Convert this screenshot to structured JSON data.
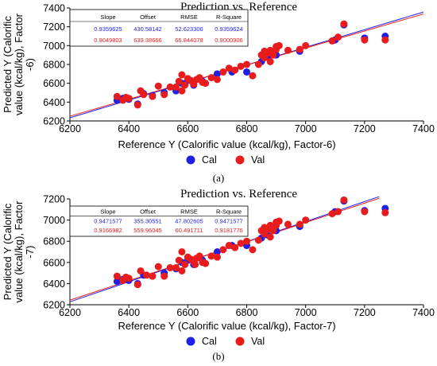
{
  "colors": {
    "cal": "#1f1fe6",
    "val": "#e81c1c",
    "axis": "#000000"
  },
  "chart_data": [
    {
      "type": "scatter",
      "panel_label": "(a)",
      "title": "Prediction vs. Reference",
      "xlabel": "Reference Y (Calorific value (kcal/kg), Factor-6)",
      "ylabel": [
        "Predicted Y (Calorific",
        "value (kcal/kg), Factor",
        "-6)"
      ],
      "xlim": [
        6200,
        7400
      ],
      "ylim": [
        6200,
        7400
      ],
      "xticks": [
        6200,
        6400,
        6600,
        6800,
        7000,
        7200,
        7400
      ],
      "yticks": [
        6200,
        6400,
        6600,
        6800,
        7000,
        7200,
        7400
      ],
      "stats_headers": [
        "Slope",
        "Offset",
        "RMSE",
        "R-Square"
      ],
      "stats_rows": [
        {
          "series": "Cal",
          "values": [
            "0.9359625",
            "430.58142",
            "52.623306",
            "0.9359624"
          ]
        },
        {
          "series": "Val",
          "values": [
            "0.9049803",
            "639.38666",
            "66.844078",
            "0.9000906"
          ]
        }
      ],
      "legend": [
        "Cal",
        "Val"
      ],
      "fit_lines": [
        {
          "series": "Cal",
          "x0": 6200,
          "x1": 7400,
          "slope": 0.9359625,
          "offset": 430.58142
        },
        {
          "series": "Val",
          "x0": 6200,
          "x1": 7400,
          "slope": 0.9049803,
          "offset": 639.38666
        }
      ],
      "series": [
        {
          "name": "Cal",
          "points": [
            [
              6360,
              6420
            ],
            [
              6380,
              6440
            ],
            [
              6400,
              6430
            ],
            [
              6430,
              6380
            ],
            [
              6450,
              6490
            ],
            [
              6480,
              6470
            ],
            [
              6520,
              6500
            ],
            [
              6560,
              6520
            ],
            [
              6580,
              6600
            ],
            [
              6600,
              6630
            ],
            [
              6620,
              6580
            ],
            [
              6650,
              6620
            ],
            [
              6700,
              6700
            ],
            [
              6750,
              6720
            ],
            [
              6800,
              6720
            ],
            [
              6850,
              6830
            ],
            [
              6870,
              6880
            ],
            [
              6900,
              6900
            ],
            [
              6980,
              6940
            ],
            [
              7100,
              7060
            ],
            [
              7130,
              7220
            ],
            [
              7200,
              7080
            ],
            [
              7270,
              7100
            ]
          ]
        },
        {
          "name": "Val",
          "points": [
            [
              6360,
              6460
            ],
            [
              6380,
              6420
            ],
            [
              6390,
              6450
            ],
            [
              6400,
              6440
            ],
            [
              6430,
              6370
            ],
            [
              6440,
              6520
            ],
            [
              6450,
              6480
            ],
            [
              6480,
              6460
            ],
            [
              6500,
              6570
            ],
            [
              6520,
              6480
            ],
            [
              6540,
              6560
            ],
            [
              6560,
              6560
            ],
            [
              6570,
              6620
            ],
            [
              6580,
              6690
            ],
            [
              6580,
              6520
            ],
            [
              6590,
              6580
            ],
            [
              6600,
              6650
            ],
            [
              6610,
              6630
            ],
            [
              6620,
              6610
            ],
            [
              6620,
              6590
            ],
            [
              6630,
              6640
            ],
            [
              6640,
              6660
            ],
            [
              6650,
              6610
            ],
            [
              6660,
              6600
            ],
            [
              6680,
              6660
            ],
            [
              6700,
              6640
            ],
            [
              6720,
              6720
            ],
            [
              6740,
              6760
            ],
            [
              6760,
              6740
            ],
            [
              6780,
              6780
            ],
            [
              6800,
              6800
            ],
            [
              6820,
              6680
            ],
            [
              6840,
              6800
            ],
            [
              6850,
              6900
            ],
            [
              6860,
              6870
            ],
            [
              6860,
              6940
            ],
            [
              6870,
              6920
            ],
            [
              6880,
              6830
            ],
            [
              6880,
              6950
            ],
            [
              6890,
              6900
            ],
            [
              6900,
              6960
            ],
            [
              6900,
              6990
            ],
            [
              6910,
              7000
            ],
            [
              6940,
              6950
            ],
            [
              6980,
              6960
            ],
            [
              7000,
              7000
            ],
            [
              7090,
              7050
            ],
            [
              7110,
              7090
            ],
            [
              7130,
              7230
            ],
            [
              7200,
              7060
            ],
            [
              7270,
              7060
            ]
          ]
        }
      ]
    },
    {
      "type": "scatter",
      "panel_label": "(b)",
      "title": "Prediction vs. Reference",
      "xlabel": "Reference Y (Calorific value (kcal/kg), Factor-7)",
      "ylabel": [
        "Predicted Y (Calorific",
        "value (kcal/kg), Factor",
        "-7)"
      ],
      "xlim": [
        6200,
        7400
      ],
      "ylim": [
        6200,
        7200
      ],
      "xticks": [
        6200,
        6400,
        6600,
        6800,
        7000,
        7200,
        7400
      ],
      "yticks": [
        6200,
        6400,
        6600,
        6800,
        7000,
        7200
      ],
      "stats_headers": [
        "Slope",
        "Offset",
        "RMSE",
        "R-Square"
      ],
      "stats_rows": [
        {
          "series": "Cal",
          "values": [
            "0.9471577",
            "355.30551",
            "47.802605",
            "0.9471577"
          ]
        },
        {
          "series": "Val",
          "values": [
            "0.9166982",
            "559.96045",
            "60.491711",
            "0.9181776"
          ]
        }
      ],
      "legend": [
        "Cal",
        "Val"
      ],
      "fit_lines": [
        {
          "series": "Cal",
          "x0": 6200,
          "x1": 7250,
          "slope": 0.9471577,
          "offset": 355.30551
        },
        {
          "series": "Val",
          "x0": 6200,
          "x1": 7250,
          "slope": 0.9166982,
          "offset": 559.96045
        }
      ],
      "series": [
        {
          "name": "Cal",
          "points": [
            [
              6360,
              6420
            ],
            [
              6380,
              6440
            ],
            [
              6400,
              6430
            ],
            [
              6430,
              6400
            ],
            [
              6450,
              6480
            ],
            [
              6480,
              6470
            ],
            [
              6520,
              6500
            ],
            [
              6560,
              6540
            ],
            [
              6580,
              6600
            ],
            [
              6600,
              6620
            ],
            [
              6620,
              6580
            ],
            [
              6650,
              6620
            ],
            [
              6700,
              6700
            ],
            [
              6750,
              6760
            ],
            [
              6800,
              6760
            ],
            [
              6850,
              6830
            ],
            [
              6870,
              6860
            ],
            [
              6900,
              6900
            ],
            [
              6980,
              6940
            ],
            [
              7100,
              7080
            ],
            [
              7130,
              7180
            ],
            [
              7200,
              7090
            ],
            [
              7270,
              7110
            ]
          ]
        },
        {
          "name": "Val",
          "points": [
            [
              6360,
              6470
            ],
            [
              6380,
              6430
            ],
            [
              6390,
              6460
            ],
            [
              6400,
              6450
            ],
            [
              6430,
              6390
            ],
            [
              6440,
              6520
            ],
            [
              6460,
              6480
            ],
            [
              6480,
              6470
            ],
            [
              6500,
              6560
            ],
            [
              6520,
              6470
            ],
            [
              6540,
              6550
            ],
            [
              6560,
              6550
            ],
            [
              6570,
              6620
            ],
            [
              6580,
              6700
            ],
            [
              6580,
              6520
            ],
            [
              6590,
              6580
            ],
            [
              6600,
              6650
            ],
            [
              6610,
              6630
            ],
            [
              6620,
              6610
            ],
            [
              6625,
              6580
            ],
            [
              6630,
              6640
            ],
            [
              6640,
              6660
            ],
            [
              6650,
              6600
            ],
            [
              6660,
              6590
            ],
            [
              6680,
              6660
            ],
            [
              6700,
              6650
            ],
            [
              6720,
              6720
            ],
            [
              6740,
              6760
            ],
            [
              6760,
              6740
            ],
            [
              6780,
              6780
            ],
            [
              6800,
              6800
            ],
            [
              6820,
              6720
            ],
            [
              6840,
              6810
            ],
            [
              6850,
              6900
            ],
            [
              6860,
              6870
            ],
            [
              6860,
              6930
            ],
            [
              6870,
              6910
            ],
            [
              6880,
              6840
            ],
            [
              6880,
              6950
            ],
            [
              6890,
              6900
            ],
            [
              6900,
              6950
            ],
            [
              6900,
              6980
            ],
            [
              6910,
              6990
            ],
            [
              6940,
              6960
            ],
            [
              6980,
              6960
            ],
            [
              7000,
              7000
            ],
            [
              7090,
              7060
            ],
            [
              7110,
              7080
            ],
            [
              7130,
              7190
            ],
            [
              7200,
              7080
            ],
            [
              7270,
              7070
            ]
          ]
        }
      ]
    }
  ]
}
